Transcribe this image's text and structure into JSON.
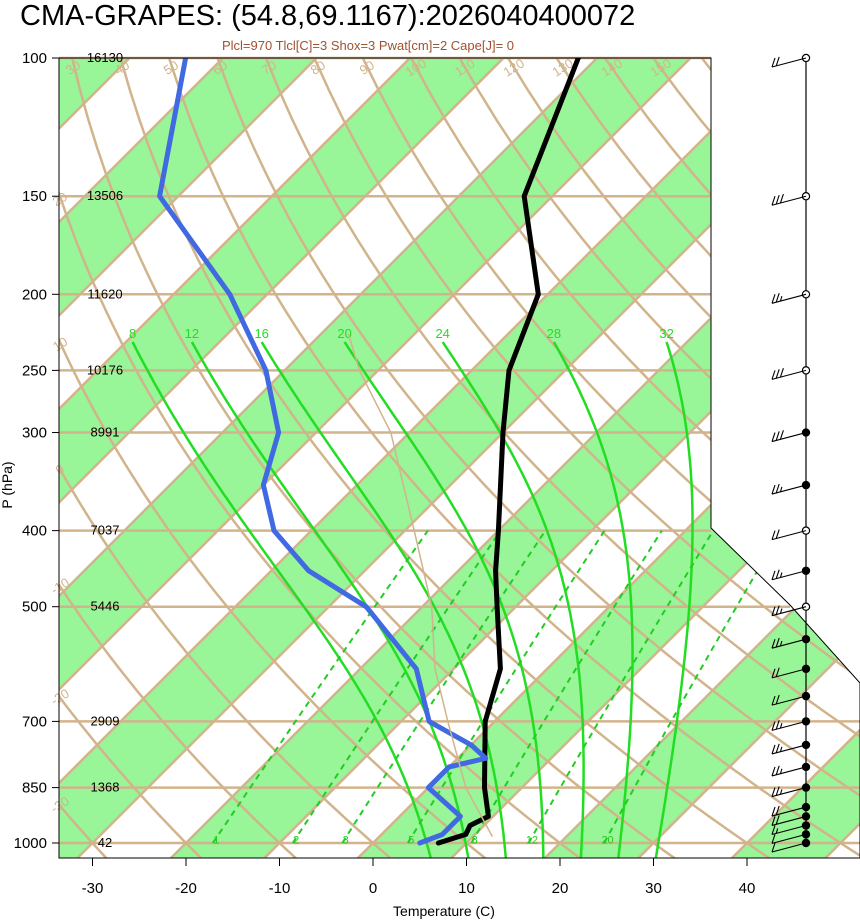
{
  "title": "CMA-GRAPES: (54.8,69.1167):2026040400072",
  "subtitle": "Plcl=970 Tlcl[C]=3 Shox=3 Pwat[cm]=2 Cape[J]= 0",
  "chart_data": {
    "type": "line",
    "diagram": "skew-T log-P",
    "xlabel": "Temperature (C)",
    "ylabel": "P (hPa)",
    "x_ticks": [
      -30,
      -20,
      -10,
      0,
      10,
      20,
      30,
      40
    ],
    "pressure_levels": [
      100,
      150,
      200,
      250,
      300,
      400,
      500,
      700,
      850,
      1000
    ],
    "heights": [
      {
        "p": 100,
        "label": "16130"
      },
      {
        "p": 150,
        "label": "13506"
      },
      {
        "p": 200,
        "label": "11620"
      },
      {
        "p": 250,
        "label": "10176"
      },
      {
        "p": 300,
        "label": "8991"
      },
      {
        "p": 400,
        "label": "7037"
      },
      {
        "p": 500,
        "label": "5446"
      },
      {
        "p": 700,
        "label": "2909"
      },
      {
        "p": 850,
        "label": "1368"
      },
      {
        "p": 1000,
        "label": "42"
      }
    ],
    "dry_adiabat_labels": [
      "-30",
      "-20",
      "-10",
      "0",
      "10",
      "20",
      "30",
      "40",
      "50",
      "60",
      "70",
      "80",
      "90",
      "100",
      "110",
      "120",
      "130",
      "140",
      "150",
      "160"
    ],
    "moist_adiabat_labels": [
      "8",
      "12",
      "16",
      "20",
      "24",
      "28",
      "32"
    ],
    "mixing_ratio_labels": [
      "1",
      "2",
      "3",
      "5",
      "8",
      "12",
      "20"
    ],
    "series": [
      {
        "name": "temperature",
        "color": "#000000",
        "points": [
          {
            "p": 1000,
            "t": 7
          },
          {
            "p": 975,
            "t": 9
          },
          {
            "p": 950,
            "t": 8.5
          },
          {
            "p": 925,
            "t": 9.5
          },
          {
            "p": 850,
            "t": 6
          },
          {
            "p": 700,
            "t": -1
          },
          {
            "p": 600,
            "t": -5
          },
          {
            "p": 500,
            "t": -12
          },
          {
            "p": 450,
            "t": -16
          },
          {
            "p": 400,
            "t": -20
          },
          {
            "p": 300,
            "t": -30
          },
          {
            "p": 250,
            "t": -36
          },
          {
            "p": 200,
            "t": -41
          },
          {
            "p": 150,
            "t": -53
          },
          {
            "p": 100,
            "t": -62
          }
        ]
      },
      {
        "name": "dewpoint",
        "color": "#4169e1",
        "points": [
          {
            "p": 1000,
            "t": 5
          },
          {
            "p": 975,
            "t": 6.5
          },
          {
            "p": 925,
            "t": 6.5
          },
          {
            "p": 850,
            "t": 0
          },
          {
            "p": 800,
            "t": 0
          },
          {
            "p": 780,
            "t": 3
          },
          {
            "p": 750,
            "t": 0
          },
          {
            "p": 700,
            "t": -7
          },
          {
            "p": 600,
            "t": -14
          },
          {
            "p": 500,
            "t": -26
          },
          {
            "p": 450,
            "t": -36
          },
          {
            "p": 400,
            "t": -44
          },
          {
            "p": 350,
            "t": -50
          },
          {
            "p": 300,
            "t": -54
          },
          {
            "p": 250,
            "t": -62
          },
          {
            "p": 200,
            "t": -74
          },
          {
            "p": 150,
            "t": -92
          },
          {
            "p": 100,
            "t": -104
          }
        ]
      },
      {
        "name": "parcel",
        "color": "#d2b48c",
        "points": [
          {
            "p": 980,
            "t": 12
          },
          {
            "p": 850,
            "t": 4
          },
          {
            "p": 700,
            "t": -5
          },
          {
            "p": 600,
            "t": -12
          },
          {
            "p": 500,
            "t": -19
          },
          {
            "p": 400,
            "t": -29
          },
          {
            "p": 300,
            "t": -42
          },
          {
            "p": 250,
            "t": -52
          },
          {
            "p": 225,
            "t": -57
          }
        ]
      }
    ],
    "wind_barbs": [
      {
        "p": 1000,
        "kt": 10
      },
      {
        "p": 975,
        "kt": 10
      },
      {
        "p": 950,
        "kt": 15
      },
      {
        "p": 925,
        "kt": 20
      },
      {
        "p": 900,
        "kt": 20
      },
      {
        "p": 850,
        "kt": 25
      },
      {
        "p": 800,
        "kt": 25
      },
      {
        "p": 750,
        "kt": 25
      },
      {
        "p": 700,
        "kt": 25
      },
      {
        "p": 650,
        "kt": 20
      },
      {
        "p": 600,
        "kt": 20
      },
      {
        "p": 550,
        "kt": 25
      },
      {
        "p": 500,
        "kt": 25
      },
      {
        "p": 450,
        "kt": 25
      },
      {
        "p": 400,
        "kt": 20
      },
      {
        "p": 350,
        "kt": 25
      },
      {
        "p": 300,
        "kt": 30
      },
      {
        "p": 250,
        "kt": 30
      },
      {
        "p": 200,
        "kt": 25
      },
      {
        "p": 150,
        "kt": 30
      },
      {
        "p": 100,
        "kt": 20
      }
    ],
    "colors": {
      "isotherm_band": "#98f598",
      "grid_line": "#d2b48c",
      "moist_adiabat": "#22dd22",
      "mixing_ratio": "#22cc22"
    }
  }
}
